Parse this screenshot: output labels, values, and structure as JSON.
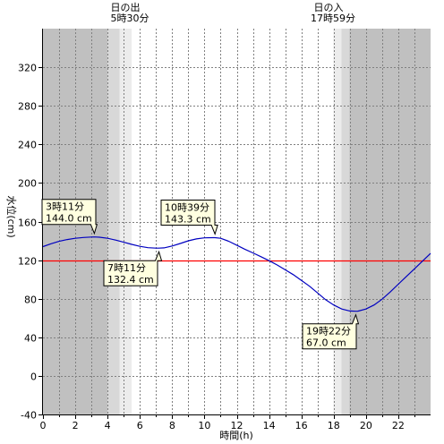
{
  "chart_data": {
    "type": "line",
    "xlabel": "時間(h)",
    "ylabel": "水位(cm)",
    "xlim": [
      0,
      24
    ],
    "ylim": [
      -40,
      360
    ],
    "x_ticks": [
      0,
      2,
      4,
      6,
      8,
      10,
      12,
      14,
      16,
      18,
      20,
      22
    ],
    "y_ticks": [
      -40,
      0,
      40,
      80,
      120,
      160,
      200,
      240,
      280,
      320
    ],
    "grid": true,
    "reference_line": {
      "value": 120,
      "color": "#ff0000"
    },
    "sunrise": {
      "title": "日の出",
      "time_label": "5時30分",
      "hour": 5.5
    },
    "sunset": {
      "title": "日の入",
      "time_label": "17時59分",
      "hour": 17.98
    },
    "colors": {
      "night": "#c0c0c0",
      "twilight_dark": "#d8d8d8",
      "twilight_light": "#ececec",
      "day": "#ffffff",
      "grid": "#808080",
      "series": "#0000c0",
      "reference": "#ff0000",
      "callout_fill": "#ffffe0"
    },
    "series": [
      {
        "x": [
          0,
          0.5,
          1,
          1.5,
          2,
          2.5,
          3,
          3.18,
          3.5,
          4,
          4.5,
          5,
          5.5,
          6,
          6.5,
          7,
          7.18,
          7.5,
          8,
          8.5,
          9,
          9.5,
          10,
          10.5,
          10.65,
          11,
          11.5,
          12,
          12.5,
          13,
          13.5,
          14,
          14.5,
          15,
          15.5,
          16,
          16.5,
          17,
          17.5,
          18,
          18.5,
          19,
          19.37,
          19.5,
          20,
          20.5,
          21,
          21.5,
          22,
          22.5,
          23,
          23.5,
          24
        ],
        "y": [
          134,
          137,
          139.5,
          141.3,
          142.6,
          143.5,
          143.9,
          144.0,
          143.8,
          142.6,
          140.8,
          138.6,
          136.3,
          134.3,
          132.9,
          132.4,
          132.4,
          132.7,
          134.7,
          137.3,
          140.0,
          142.0,
          143.1,
          143.3,
          143.3,
          142.6,
          139.6,
          135.5,
          131.3,
          127.5,
          123.5,
          119.4,
          115,
          110,
          105,
          99,
          93,
          86,
          79,
          73.5,
          69.3,
          67.3,
          67.0,
          67.1,
          69.3,
          73.5,
          79.5,
          87,
          95,
          103,
          111,
          119,
          127
        ]
      }
    ],
    "annotations": [
      {
        "time": "3時11分",
        "value": "144.0 cm"
      },
      {
        "time": "7時11分",
        "value": "132.4 cm"
      },
      {
        "time": "10時39分",
        "value": "143.3 cm"
      },
      {
        "time": "19時22分",
        "value": "67.0 cm"
      }
    ]
  }
}
